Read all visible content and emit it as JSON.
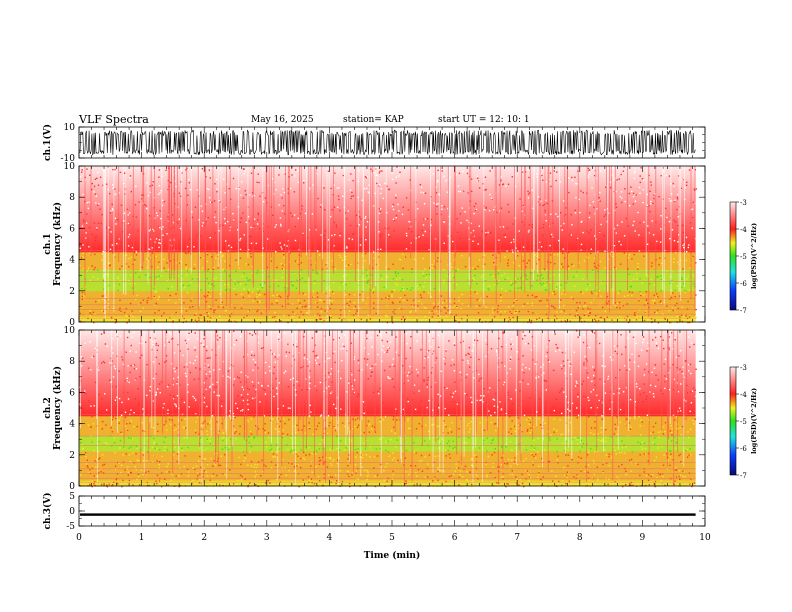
{
  "header": {
    "title": "VLF Spectra",
    "date": "May 16, 2025",
    "station": "station= KAP",
    "start": "start  UT  =   12: 10: 1"
  },
  "colors": {
    "spectrum_low": "#0a1a8c",
    "spectrum_mid": "#38e31a",
    "spectrum_high": "#ff2020",
    "background": "#ffffff",
    "trace": "#000000"
  },
  "chart_data": [
    {
      "type": "line",
      "name": "ch1-waveform",
      "title": "VLF Spectra",
      "ylabel": "ch.1(V)",
      "ylim": [
        -10,
        10
      ],
      "y_ticks": [
        "10",
        "-10"
      ],
      "description_values": {
        "amplitude_range": [
          -10,
          10
        ],
        "typical_envelope": [
          -8,
          8
        ]
      }
    },
    {
      "type": "heatmap",
      "name": "ch1-spectrogram",
      "ylabel": "ch.1  Frequency  (kHz)",
      "ylim": [
        0,
        10
      ],
      "y_ticks": [
        "0",
        "2",
        "4",
        "6",
        "8",
        "10"
      ],
      "xlim": [
        0,
        10
      ],
      "colorbar": {
        "label": "log(PSD)(V^2/Hz)",
        "ticks": [
          "-3",
          "-4",
          "-5",
          "-6",
          "-7"
        ],
        "range": [
          -7,
          -3
        ]
      },
      "bands_khz": {
        "green_band": [
          2.0,
          3.4
        ],
        "yellow_band": [
          0.4,
          4.5
        ],
        "red_to": 10
      }
    },
    {
      "type": "heatmap",
      "name": "ch2-spectrogram",
      "ylabel": "ch.2  Frequency  (kHz)",
      "ylim": [
        0,
        10
      ],
      "y_ticks": [
        "0",
        "2",
        "4",
        "6",
        "8",
        "10"
      ],
      "xlim": [
        0,
        10
      ],
      "colorbar": {
        "label": "log(PSD)(V^2/Hz)",
        "ticks": [
          "-3",
          "-4",
          "-5",
          "-6",
          "-7"
        ],
        "range": [
          -7,
          -3
        ]
      },
      "bands_khz": {
        "green_band": [
          2.2,
          3.3
        ],
        "yellow_band": [
          0.4,
          4.5
        ],
        "red_to": 10
      }
    },
    {
      "type": "line",
      "name": "ch3-waveform",
      "ylabel": "ch.3(V)",
      "ylim": [
        -5,
        5
      ],
      "y_ticks": [
        "5",
        "0",
        "-5"
      ],
      "description_values": {
        "level": -1.2,
        "amplitude": 0.4
      }
    }
  ],
  "time_axis": {
    "xlabel": "Time  (min)",
    "xlim": [
      0,
      10
    ],
    "data_end": 9.85,
    "ticks": [
      "0",
      "1",
      "2",
      "3",
      "4",
      "5",
      "6",
      "7",
      "8",
      "9",
      "10"
    ]
  }
}
